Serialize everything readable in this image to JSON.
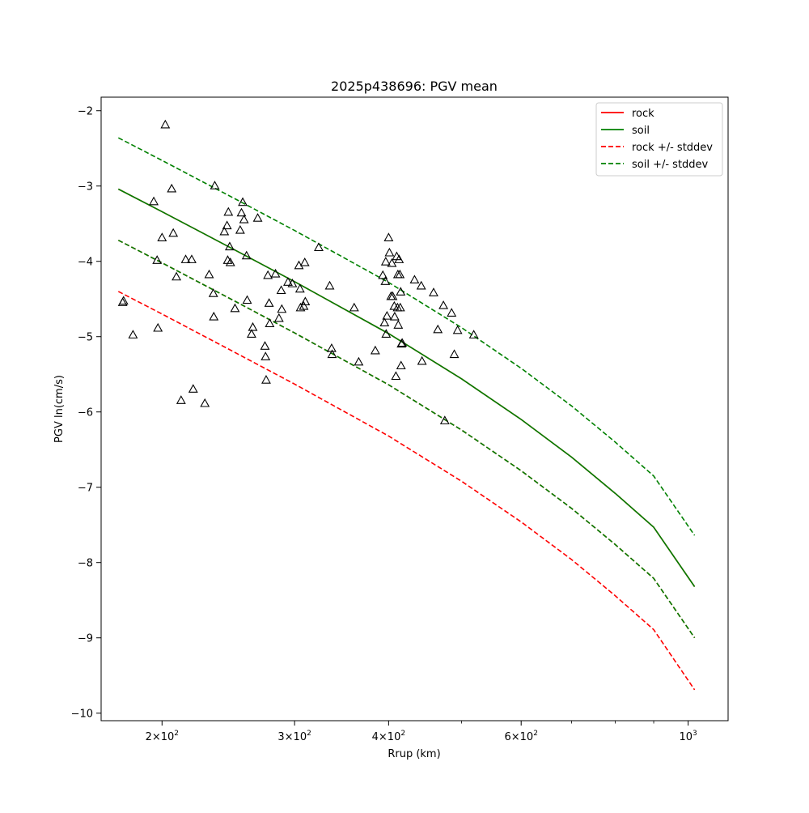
{
  "chart_data": {
    "type": "scatter",
    "title": "2025p438696: PGV mean",
    "xlabel": "Rrup (km)",
    "ylabel": "PGV ln(cm/s)",
    "xscale": "log",
    "xlim": [
      166,
      1130
    ],
    "ylim": [
      -10.1,
      -1.82
    ],
    "grid": false,
    "legend_position": "top-right",
    "x_major_ticks": [
      {
        "value": 100,
        "base": "10",
        "exp": "2",
        "coef": ""
      },
      {
        "value": 200,
        "base": "10",
        "exp": "2",
        "coef": "2×"
      },
      {
        "value": 300,
        "base": "10",
        "exp": "2",
        "coef": "3×"
      },
      {
        "value": 400,
        "base": "10",
        "exp": "2",
        "coef": "4×"
      },
      {
        "value": 600,
        "base": "10",
        "exp": "2",
        "coef": "6×"
      },
      {
        "value": 1000,
        "base": "10",
        "exp": "3",
        "coef": ""
      }
    ],
    "x_minor_ticks": [
      500,
      700,
      800,
      900
    ],
    "y_ticks": [
      {
        "value": -2,
        "label": "−2"
      },
      {
        "value": -3,
        "label": "−3"
      },
      {
        "value": -4,
        "label": "−4"
      },
      {
        "value": -5,
        "label": "−5"
      },
      {
        "value": -6,
        "label": "−6"
      },
      {
        "value": -7,
        "label": "−7"
      },
      {
        "value": -8,
        "label": "−8"
      },
      {
        "value": -9,
        "label": "−9"
      },
      {
        "value": -10,
        "label": "−10"
      }
    ],
    "series": [
      {
        "name": "rock",
        "color": "#ff0000",
        "dash": "solid",
        "x": [
          175,
          200,
          250,
          300,
          400,
          500,
          600,
          700,
          800,
          900,
          1020
        ],
        "y": [
          -3.04,
          -3.34,
          -3.85,
          -4.27,
          -4.96,
          -5.56,
          -6.1,
          -6.6,
          -7.08,
          -7.53,
          -8.32
        ]
      },
      {
        "name": "soil",
        "color": "#008000",
        "dash": "solid",
        "x": [
          175,
          200,
          250,
          300,
          400,
          500,
          600,
          700,
          800,
          900,
          1020
        ],
        "y": [
          -3.04,
          -3.34,
          -3.85,
          -4.27,
          -4.96,
          -5.56,
          -6.1,
          -6.6,
          -7.08,
          -7.53,
          -8.32
        ]
      },
      {
        "name": "rock +/- stddev",
        "color": "#ff0000",
        "dash": "dashed",
        "x": [
          175,
          200,
          250,
          300,
          400,
          500,
          600,
          700,
          800,
          900,
          1020
        ],
        "y": [
          -3.72,
          -4.02,
          -4.53,
          -4.95,
          -5.64,
          -6.24,
          -6.78,
          -7.28,
          -7.76,
          -8.21,
          -9.0
        ]
      },
      {
        "name": "rock +/- stddev",
        "color": "#ff0000",
        "dash": "dashed",
        "legend": false,
        "x": [
          175,
          200,
          250,
          300,
          400,
          500,
          600,
          700,
          800,
          900,
          1020
        ],
        "y": [
          -4.4,
          -4.7,
          -5.21,
          -5.63,
          -6.32,
          -6.92,
          -7.46,
          -7.96,
          -8.44,
          -8.89,
          -9.69
        ]
      },
      {
        "name": "soil +/- stddev",
        "color": "#008000",
        "dash": "dashed",
        "x": [
          175,
          200,
          250,
          300,
          400,
          500,
          600,
          700,
          800,
          900,
          1020
        ],
        "y": [
          -2.36,
          -2.66,
          -3.17,
          -3.59,
          -4.28,
          -4.88,
          -5.42,
          -5.92,
          -6.4,
          -6.85,
          -7.64
        ]
      },
      {
        "name": "soil +/- stddev",
        "color": "#008000",
        "dash": "dashed",
        "legend": false,
        "x": [
          175,
          200,
          250,
          300,
          400,
          500,
          600,
          700,
          800,
          900,
          1020
        ],
        "y": [
          -3.72,
          -4.02,
          -4.53,
          -4.95,
          -5.64,
          -6.24,
          -6.78,
          -7.28,
          -7.76,
          -8.21,
          -9.0
        ]
      }
    ],
    "points": [
      [
        177.8,
        -4.53
      ],
      [
        177.3,
        -4.55
      ],
      [
        183.0,
        -4.98
      ],
      [
        195.0,
        -3.21
      ],
      [
        197.0,
        -3.99
      ],
      [
        197.5,
        -4.89
      ],
      [
        200.0,
        -3.69
      ],
      [
        202.0,
        -2.19
      ],
      [
        206.0,
        -3.04
      ],
      [
        207.0,
        -3.63
      ],
      [
        209.0,
        -4.21
      ],
      [
        212.0,
        -5.85
      ],
      [
        215.0,
        -3.98
      ],
      [
        219.0,
        -3.98
      ],
      [
        220.0,
        -5.7
      ],
      [
        228.0,
        -5.89
      ],
      [
        231.0,
        -4.18
      ],
      [
        234.0,
        -4.43
      ],
      [
        234.3,
        -4.74
      ],
      [
        235.0,
        -3.0
      ],
      [
        242.0,
        -3.61
      ],
      [
        244.0,
        -3.53
      ],
      [
        245.0,
        -3.35
      ],
      [
        244.5,
        -3.99
      ],
      [
        246.0,
        -3.81
      ],
      [
        246.5,
        -4.02
      ],
      [
        250.0,
        -4.63
      ],
      [
        254.0,
        -3.59
      ],
      [
        255.0,
        -3.36
      ],
      [
        256.0,
        -3.22
      ],
      [
        257.0,
        -3.45
      ],
      [
        259.0,
        -3.93
      ],
      [
        259.5,
        -4.52
      ],
      [
        263.0,
        -4.97
      ],
      [
        264.0,
        -4.88
      ],
      [
        268.0,
        -3.43
      ],
      [
        274.0,
        -5.13
      ],
      [
        274.5,
        -5.27
      ],
      [
        275.0,
        -5.58
      ],
      [
        276.5,
        -4.19
      ],
      [
        277.5,
        -4.56
      ],
      [
        278.0,
        -4.83
      ],
      [
        283.0,
        -4.17
      ],
      [
        286.0,
        -4.76
      ],
      [
        288.0,
        -4.39
      ],
      [
        288.5,
        -4.64
      ],
      [
        294.0,
        -4.28
      ],
      [
        298.0,
        -4.3
      ],
      [
        304.0,
        -4.06
      ],
      [
        305.0,
        -4.37
      ],
      [
        305.5,
        -4.62
      ],
      [
        308.5,
        -4.6
      ],
      [
        310.0,
        -4.54
      ],
      [
        309.5,
        -4.02
      ],
      [
        323.0,
        -3.82
      ],
      [
        334.0,
        -4.33
      ],
      [
        336.0,
        -5.16
      ],
      [
        336.5,
        -5.24
      ],
      [
        360.0,
        -4.62
      ],
      [
        365.0,
        -5.34
      ],
      [
        384.0,
        -5.19
      ],
      [
        393.0,
        -4.19
      ],
      [
        395.0,
        -4.82
      ],
      [
        396.0,
        -4.27
      ],
      [
        396.5,
        -4.01
      ],
      [
        398.0,
        -4.73
      ],
      [
        397.0,
        -4.97
      ],
      [
        400.0,
        -3.69
      ],
      [
        401.0,
        -3.89
      ],
      [
        403.0,
        -4.47
      ],
      [
        404.0,
        -4.03
      ],
      [
        405.0,
        -4.47
      ],
      [
        407.0,
        -4.6
      ],
      [
        407.5,
        -4.74
      ],
      [
        409.0,
        -5.53
      ],
      [
        410.0,
        -3.94
      ],
      [
        411.0,
        -4.62
      ],
      [
        411.5,
        -4.18
      ],
      [
        412.0,
        -4.85
      ],
      [
        413.0,
        -3.98
      ],
      [
        414.0,
        -4.18
      ],
      [
        414.5,
        -4.62
      ],
      [
        415.0,
        -4.41
      ],
      [
        415.5,
        -5.39
      ],
      [
        416.0,
        -5.1
      ],
      [
        417.0,
        -5.09
      ],
      [
        433.0,
        -4.25
      ],
      [
        442.0,
        -4.33
      ],
      [
        443.0,
        -5.33
      ],
      [
        459.0,
        -4.42
      ],
      [
        465.0,
        -4.91
      ],
      [
        473.0,
        -4.59
      ],
      [
        475.0,
        -6.12
      ],
      [
        485.0,
        -4.69
      ],
      [
        489.0,
        -5.24
      ],
      [
        494.0,
        -4.92
      ],
      [
        519.0,
        -4.98
      ]
    ]
  }
}
